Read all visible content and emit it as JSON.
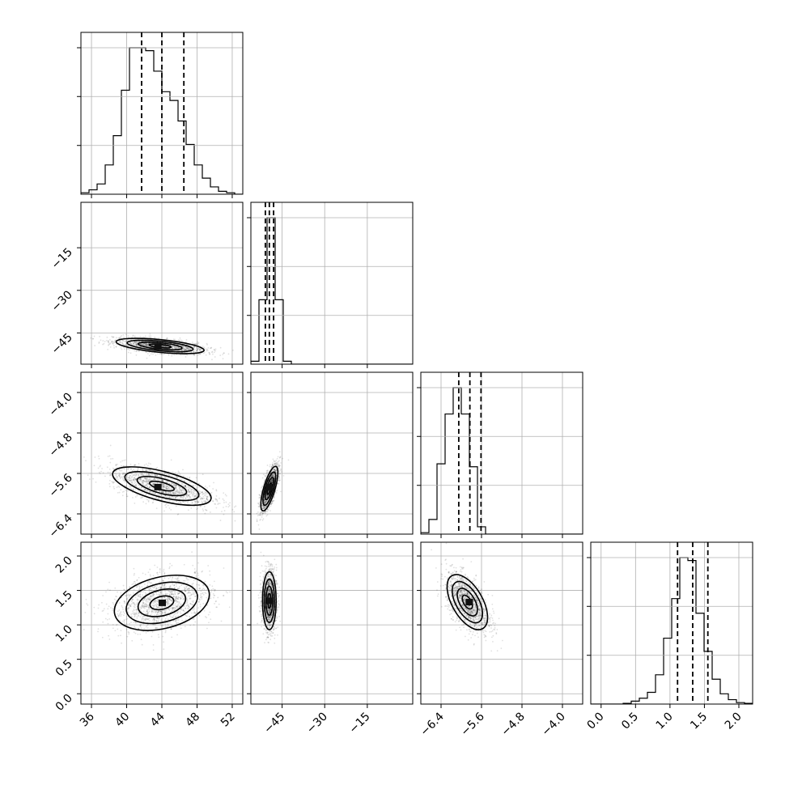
{
  "chart_data": {
    "type": "corner",
    "description_of_levels": "2D density contours with scatter of samples, 1D histograms with 16/50/84 percentile dashed lines",
    "params": [
      {
        "range": [
          34.8,
          53.2
        ],
        "ticks": [
          36,
          40,
          44,
          48,
          52
        ],
        "tick_labels": [
          "36",
          "40",
          "44",
          "48",
          "52"
        ],
        "hist": {
          "edges": [
            34.8,
            35.72,
            36.64,
            37.56,
            38.48,
            39.4,
            40.32,
            41.24,
            42.16,
            43.08,
            44.0,
            44.92,
            45.84,
            46.76,
            47.68,
            48.6,
            49.52,
            50.44,
            51.36,
            52.28,
            53.2
          ],
          "counts": [
            0.01,
            0.03,
            0.07,
            0.2,
            0.4,
            0.71,
            1.0,
            1.0,
            0.98,
            0.84,
            0.7,
            0.64,
            0.5,
            0.34,
            0.2,
            0.11,
            0.05,
            0.02,
            0.01,
            0.0
          ]
        },
        "quantiles": [
          41.7,
          44.0,
          46.5
        ]
      },
      {
        "range": [
          -56,
          1
        ],
        "ticks": [
          -45,
          -30,
          -15
        ],
        "tick_labels": [
          "−45",
          "−30",
          "−15"
        ],
        "hist": {
          "edges": [
            -56,
            -53.15,
            -50.3,
            -47.45,
            -44.6,
            -41.75,
            -38.9,
            -36.05,
            -33.2,
            -30.35,
            -27.5,
            -24.65,
            -21.8,
            -18.95,
            -16.1,
            -13.25,
            -10.4,
            -7.55,
            -4.7,
            -1.85,
            1.0
          ],
          "counts": [
            0.02,
            0.44,
            1.0,
            0.44,
            0.02,
            0,
            0,
            0,
            0,
            0,
            0,
            0,
            0,
            0,
            0,
            0,
            0,
            0,
            0,
            0
          ]
        },
        "quantiles": [
          -50.9,
          -49.5,
          -48.0
        ]
      },
      {
        "range": [
          -6.8,
          -3.6
        ],
        "ticks": [
          -6.4,
          -5.6,
          -4.8,
          -4.0
        ],
        "tick_labels": [
          "−6.4",
          "−5.6",
          "−4.8",
          "−4.0"
        ],
        "hist": {
          "edges": [
            -6.8,
            -6.64,
            -6.48,
            -6.32,
            -6.16,
            -6.0,
            -5.84,
            -5.68,
            -5.52,
            -5.36,
            -5.2,
            -5.04,
            -4.88,
            -4.72,
            -4.56,
            -4.4,
            -4.24,
            -4.08,
            -3.92,
            -3.76,
            -3.6
          ],
          "counts": [
            0.01,
            0.1,
            0.48,
            0.82,
            1.0,
            0.82,
            0.46,
            0.05,
            0,
            0,
            0,
            0,
            0,
            0,
            0,
            0,
            0,
            0,
            0,
            0
          ]
        },
        "quantiles": [
          -6.05,
          -5.83,
          -5.61
        ]
      },
      {
        "range": [
          -0.15,
          2.2
        ],
        "ticks": [
          0.0,
          0.5,
          1.0,
          1.5,
          2.0
        ],
        "tick_labels": [
          "0.0",
          "0.5",
          "1.0",
          "1.5",
          "2.0"
        ],
        "hist": {
          "edges": [
            -0.15,
            -0.0325,
            0.085,
            0.2025,
            0.32,
            0.4375,
            0.555,
            0.6725,
            0.79,
            0.9075,
            1.025,
            1.1425,
            1.26,
            1.3775,
            1.495,
            1.6125,
            1.73,
            1.8475,
            1.965,
            2.0825,
            2.2
          ],
          "counts": [
            0,
            0,
            0,
            0,
            0.005,
            0.02,
            0.04,
            0.08,
            0.2,
            0.45,
            0.72,
            1.0,
            0.98,
            0.62,
            0.36,
            0.17,
            0.07,
            0.03,
            0.01,
            0.005
          ]
        },
        "quantiles": [
          1.11,
          1.33,
          1.55
        ]
      }
    ],
    "pairs": [
      {
        "x": 0,
        "y": 1,
        "center": [
          43.8,
          -49.6
        ],
        "sigma": [
          2.5,
          1.35
        ],
        "rho": -0.55,
        "peak": [
          43.5,
          -49.8
        ]
      },
      {
        "x": 0,
        "y": 2,
        "center": [
          44.0,
          -5.85
        ],
        "sigma": [
          2.8,
          0.19
        ],
        "rho": -0.62,
        "peak": [
          43.5,
          -5.87
        ]
      },
      {
        "x": 0,
        "y": 3,
        "center": [
          44.0,
          1.32
        ],
        "sigma": [
          2.7,
          0.2
        ],
        "rho": 0.3,
        "peak": [
          44.0,
          1.32
        ]
      },
      {
        "x": 1,
        "y": 2,
        "center": [
          -49.5,
          -5.9
        ],
        "sigma": [
          1.5,
          0.22
        ],
        "rho": 0.72,
        "peak": [
          -49.7,
          -5.87
        ]
      },
      {
        "x": 1,
        "y": 3,
        "center": [
          -49.5,
          1.35
        ],
        "sigma": [
          1.2,
          0.21
        ],
        "rho": 0.0,
        "peak": [
          -49.5,
          1.35
        ]
      },
      {
        "x": 2,
        "y": 3,
        "center": [
          -5.88,
          1.33
        ],
        "sigma": [
          0.2,
          0.2
        ],
        "rho": -0.55,
        "peak": [
          -5.85,
          1.33
        ]
      }
    ]
  }
}
